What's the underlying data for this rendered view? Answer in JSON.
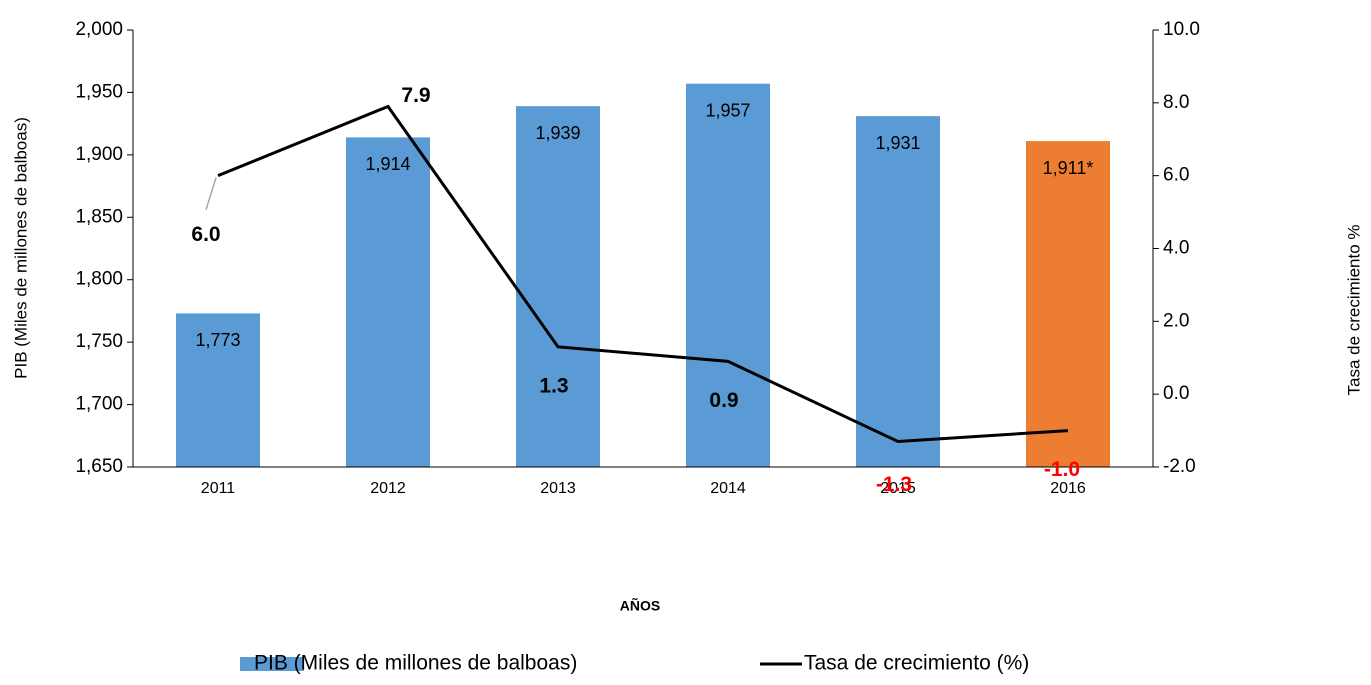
{
  "chart_data": {
    "type": "bar",
    "x_label": "AÑOS",
    "y_label": "PIB (Miles de millones de balboas)",
    "y2_label": "Tasa de crecimiento %",
    "categories": [
      "2011",
      "2012",
      "2013",
      "2014",
      "2015",
      "2016"
    ],
    "series": [
      {
        "name": "PIB (Miles de millones de balboas)",
        "type": "bar",
        "color": "#5b9bd5",
        "colors": [
          "#5b9bd5",
          "#5b9bd5",
          "#5b9bd5",
          "#5b9bd5",
          "#5b9bd5",
          "#ed7d31"
        ],
        "values": [
          1773,
          1914,
          1939,
          1957,
          1931,
          1911
        ],
        "value_labels": [
          "1,773",
          "1,914",
          "1,939",
          "1,957",
          "1,931",
          "1,911*"
        ]
      },
      {
        "name": "Tasa de crecimiento (%)",
        "type": "line",
        "axis": "y2",
        "color": "#000000",
        "values": [
          6.0,
          7.9,
          1.3,
          0.9,
          -1.3,
          -1.0
        ],
        "value_labels": [
          "6.0",
          "7.9",
          "1.3",
          "0.9",
          "-1.3",
          "-1.0"
        ],
        "label_colors": [
          "#000000",
          "#000000",
          "#000000",
          "#000000",
          "#ff0000",
          "#ff0000"
        ]
      }
    ],
    "ylim": [
      1650,
      2000
    ],
    "yticks": [
      {
        "value": 1650,
        "label": "1,650"
      },
      {
        "value": 1700,
        "label": "1,700"
      },
      {
        "value": 1750,
        "label": "1,750"
      },
      {
        "value": 1800,
        "label": "1,800"
      },
      {
        "value": 1850,
        "label": "1,850"
      },
      {
        "value": 1900,
        "label": "1,900"
      },
      {
        "value": 1950,
        "label": "1,950"
      },
      {
        "value": 2000,
        "label": "2,000"
      }
    ],
    "y2lim": [
      -2,
      10
    ],
    "y2ticks": [
      {
        "value": -2,
        "label": "-2.0"
      },
      {
        "value": 0,
        "label": "0.0"
      },
      {
        "value": 2,
        "label": "2.0"
      },
      {
        "value": 4,
        "label": "4.0"
      },
      {
        "value": 6,
        "label": "6.0"
      },
      {
        "value": 8,
        "label": "8.0"
      },
      {
        "value": 10,
        "label": "10.0"
      }
    ],
    "grid": false,
    "legend": "bottom"
  }
}
